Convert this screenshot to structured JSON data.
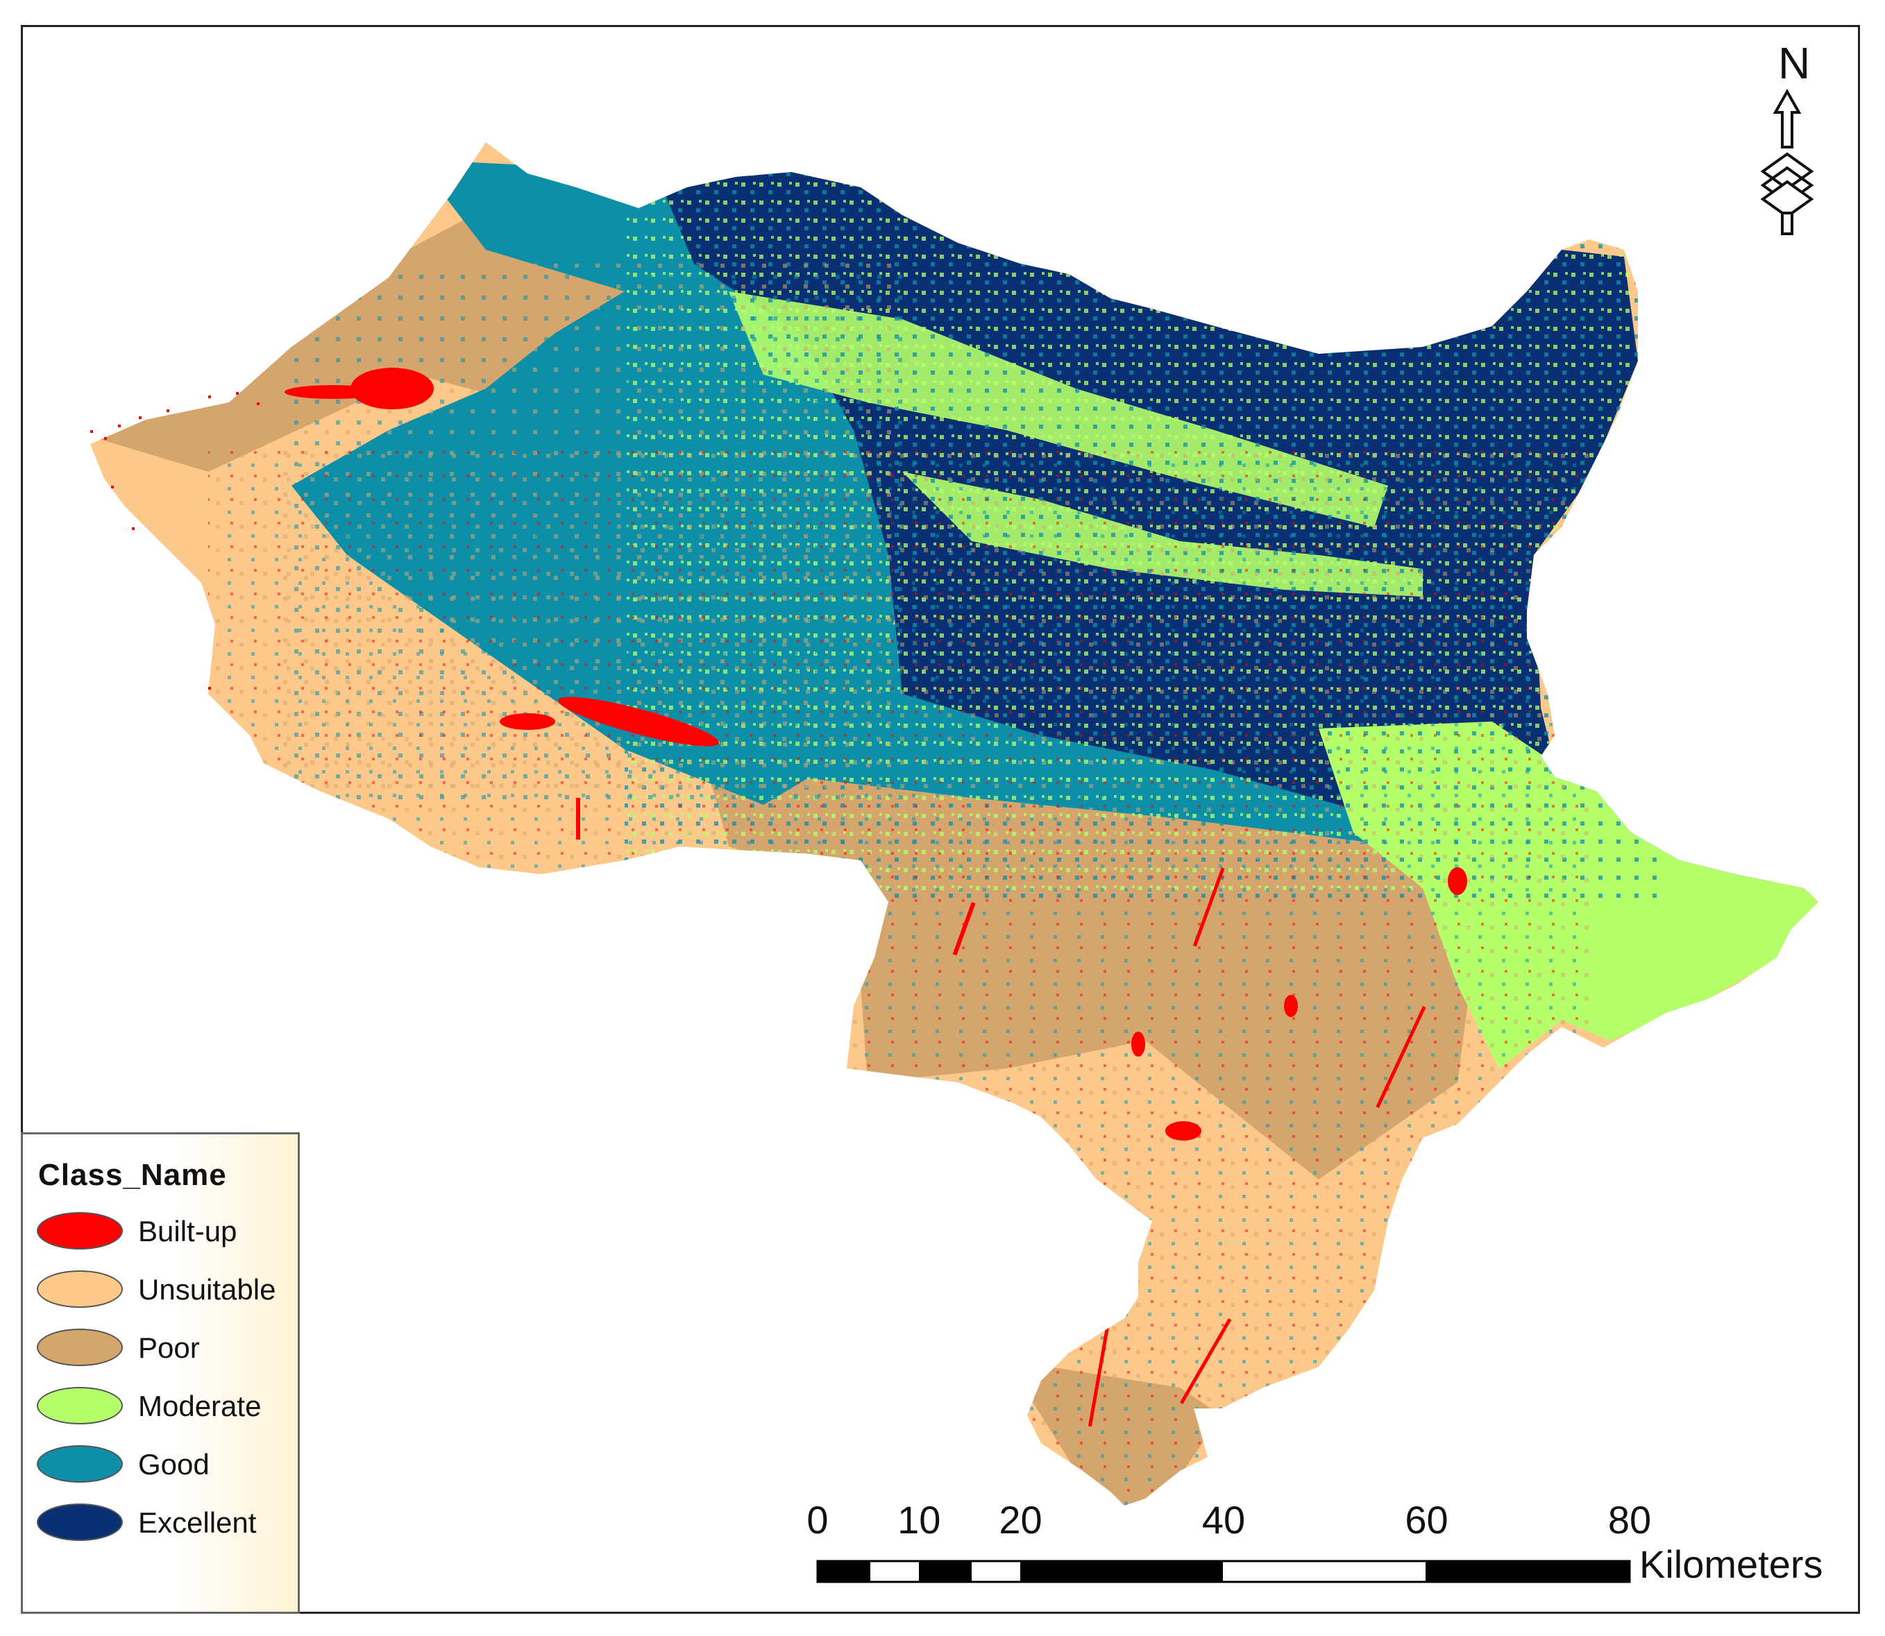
{
  "legend": {
    "title": "Class_Name",
    "items": [
      {
        "label": "Built-up",
        "color": "#ff0000"
      },
      {
        "label": "Unsuitable",
        "color": "#fdc98a"
      },
      {
        "label": "Poor",
        "color": "#d4a66e"
      },
      {
        "label": "Moderate",
        "color": "#b5ff6a"
      },
      {
        "label": "Good",
        "color": "#0d8fa8"
      },
      {
        "label": "Excellent",
        "color": "#0a2f72"
      }
    ]
  },
  "north_arrow": {
    "label": "N"
  },
  "scale_bar": {
    "ticks": [
      "0",
      "10",
      "20",
      "40",
      "60",
      "80"
    ],
    "unit": "Kilometers"
  }
}
